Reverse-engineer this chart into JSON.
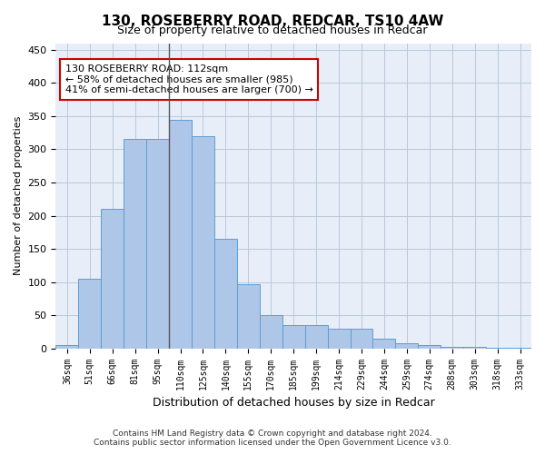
{
  "title": "130, ROSEBERRY ROAD, REDCAR, TS10 4AW",
  "subtitle": "Size of property relative to detached houses in Redcar",
  "xlabel": "Distribution of detached houses by size in Redcar",
  "ylabel": "Number of detached properties",
  "categories": [
    "36sqm",
    "51sqm",
    "66sqm",
    "81sqm",
    "95sqm",
    "110sqm",
    "125sqm",
    "140sqm",
    "155sqm",
    "170sqm",
    "185sqm",
    "199sqm",
    "214sqm",
    "229sqm",
    "244sqm",
    "259sqm",
    "274sqm",
    "288sqm",
    "303sqm",
    "318sqm",
    "333sqm"
  ],
  "values": [
    5,
    105,
    210,
    315,
    315,
    345,
    320,
    165,
    97,
    50,
    35,
    35,
    29,
    29,
    15,
    8,
    5,
    2,
    2,
    1,
    1
  ],
  "bar_color": "#aec6e8",
  "bar_edge_color": "#5a9fd4",
  "property_line_index": 5,
  "annotation_title": "130 ROSEBERRY ROAD: 112sqm",
  "annotation_line1": "← 58% of detached houses are smaller (985)",
  "annotation_line2": "41% of semi-detached houses are larger (700) →",
  "annotation_box_color": "#ffffff",
  "annotation_box_edge": "#cc0000",
  "ylim": [
    0,
    460
  ],
  "yticks": [
    0,
    50,
    100,
    150,
    200,
    250,
    300,
    350,
    400,
    450
  ],
  "footer_line1": "Contains HM Land Registry data © Crown copyright and database right 2024.",
  "footer_line2": "Contains public sector information licensed under the Open Government Licence v3.0.",
  "background_color": "#e8eef8"
}
